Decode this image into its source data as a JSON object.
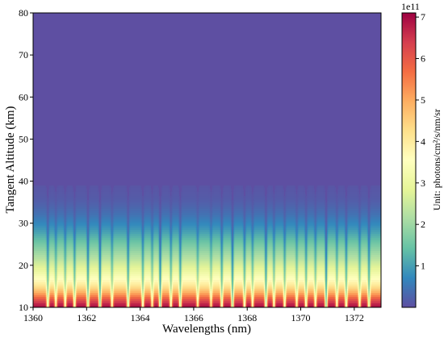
{
  "chart_data": {
    "type": "heatmap",
    "xlabel": "Wavelengths (nm)",
    "ylabel": "Tangent Altitude (km)",
    "xlim": [
      1360,
      1373
    ],
    "ylim": [
      10,
      80
    ],
    "x_ticks": [
      1360,
      1362,
      1364,
      1366,
      1368,
      1370,
      1372
    ],
    "y_ticks": [
      10,
      20,
      30,
      40,
      50,
      60,
      70,
      80
    ],
    "colorbar": {
      "label": "Unit: photons/cm²/s/nm/sr",
      "offset_text": "1e11",
      "range": [
        0,
        7.1
      ],
      "ticks": [
        1,
        2,
        3,
        4,
        5,
        6,
        7
      ],
      "colormap": "Spectral_r"
    },
    "profile": {
      "description": "radiance vs altitude at a clear (non-absorbing) wavelength, in units of 1e11",
      "altitudes": [
        10,
        11,
        12,
        13,
        14,
        15,
        16,
        17,
        18,
        20,
        22,
        24,
        26,
        28,
        30,
        32,
        34,
        36,
        40,
        45,
        80
      ],
      "values": [
        7.0,
        6.6,
        6.0,
        5.3,
        4.7,
        4.2,
        3.8,
        3.5,
        3.2,
        2.7,
        2.2,
        1.8,
        1.4,
        1.0,
        0.7,
        0.45,
        0.28,
        0.15,
        0.05,
        0.01,
        0.0
      ]
    },
    "absorption_lines": [
      {
        "wavelength": 1360.55,
        "depth": 0.75
      },
      {
        "wavelength": 1360.85,
        "depth": 0.55
      },
      {
        "wavelength": 1361.2,
        "depth": 0.6
      },
      {
        "wavelength": 1361.55,
        "depth": 0.7
      },
      {
        "wavelength": 1362.05,
        "depth": 0.85
      },
      {
        "wavelength": 1362.5,
        "depth": 0.95
      },
      {
        "wavelength": 1362.95,
        "depth": 0.6
      },
      {
        "wavelength": 1363.55,
        "depth": 0.8
      },
      {
        "wavelength": 1364.1,
        "depth": 0.7
      },
      {
        "wavelength": 1364.45,
        "depth": 0.55
      },
      {
        "wavelength": 1364.75,
        "depth": 0.95
      },
      {
        "wavelength": 1365.15,
        "depth": 0.65
      },
      {
        "wavelength": 1365.5,
        "depth": 0.8
      },
      {
        "wavelength": 1366.15,
        "depth": 0.55
      },
      {
        "wavelength": 1366.65,
        "depth": 0.5
      },
      {
        "wavelength": 1367.05,
        "depth": 0.75
      },
      {
        "wavelength": 1367.45,
        "depth": 0.9
      },
      {
        "wavelength": 1367.9,
        "depth": 0.7
      },
      {
        "wavelength": 1368.2,
        "depth": 0.6
      },
      {
        "wavelength": 1368.7,
        "depth": 0.85
      },
      {
        "wavelength": 1369.0,
        "depth": 0.6
      },
      {
        "wavelength": 1369.4,
        "depth": 0.65
      },
      {
        "wavelength": 1369.85,
        "depth": 0.55
      },
      {
        "wavelength": 1370.2,
        "depth": 0.7
      },
      {
        "wavelength": 1370.55,
        "depth": 0.6
      },
      {
        "wavelength": 1370.95,
        "depth": 0.95
      },
      {
        "wavelength": 1371.35,
        "depth": 0.6
      },
      {
        "wavelength": 1371.7,
        "depth": 0.75
      },
      {
        "wavelength": 1372.2,
        "depth": 0.6
      },
      {
        "wavelength": 1372.55,
        "depth": 0.8
      }
    ]
  }
}
